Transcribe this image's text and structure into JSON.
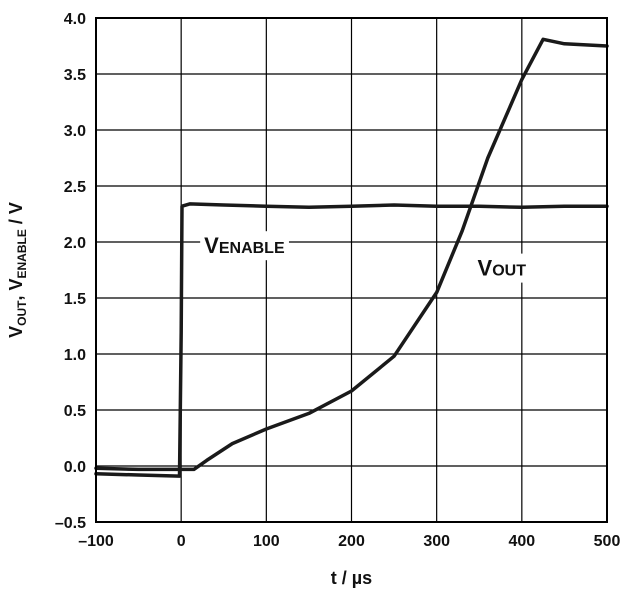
{
  "chart_data": {
    "type": "line",
    "xlabel": "t / µs",
    "ylabel": {
      "v1": "V",
      "s1": "OUT",
      "mid": ", V",
      "s2": "ENABLE",
      "end": " / V"
    },
    "xlim": [
      -100,
      500
    ],
    "ylim": [
      -0.5,
      4.0
    ],
    "x_ticks": [
      -100,
      0,
      100,
      200,
      300,
      400,
      500
    ],
    "x_tick_labels": [
      "–100",
      "0",
      "100",
      "200",
      "300",
      "400",
      "500"
    ],
    "y_ticks": [
      -0.5,
      0.0,
      0.5,
      1.0,
      1.5,
      2.0,
      2.5,
      3.0,
      3.5,
      4.0
    ],
    "y_tick_labels": [
      "–0.5",
      "0.0",
      "0.5",
      "1.0",
      "1.5",
      "2.0",
      "2.5",
      "3.0",
      "3.5",
      "4.0"
    ],
    "grid": true,
    "series": [
      {
        "name": "VENABLE",
        "label_main": "V",
        "label_sub": "ENABLE",
        "points": [
          [
            -100,
            -0.07
          ],
          [
            -50,
            -0.08
          ],
          [
            -2,
            -0.09
          ],
          [
            -1,
            0.5
          ],
          [
            0,
            1.2
          ],
          [
            1,
            2.32
          ],
          [
            10,
            2.34
          ],
          [
            50,
            2.33
          ],
          [
            100,
            2.32
          ],
          [
            150,
            2.31
          ],
          [
            200,
            2.32
          ],
          [
            250,
            2.33
          ],
          [
            300,
            2.32
          ],
          [
            350,
            2.32
          ],
          [
            400,
            2.31
          ],
          [
            450,
            2.32
          ],
          [
            500,
            2.32
          ]
        ]
      },
      {
        "name": "VOUT",
        "label_main": "V",
        "label_sub": "OUT",
        "points": [
          [
            -100,
            -0.02
          ],
          [
            -50,
            -0.03
          ],
          [
            0,
            -0.03
          ],
          [
            15,
            -0.03
          ],
          [
            30,
            0.05
          ],
          [
            60,
            0.2
          ],
          [
            100,
            0.33
          ],
          [
            150,
            0.47
          ],
          [
            200,
            0.67
          ],
          [
            250,
            0.98
          ],
          [
            300,
            1.55
          ],
          [
            330,
            2.1
          ],
          [
            360,
            2.75
          ],
          [
            400,
            3.45
          ],
          [
            425,
            3.81
          ],
          [
            450,
            3.77
          ],
          [
            500,
            3.75
          ]
        ]
      }
    ]
  }
}
